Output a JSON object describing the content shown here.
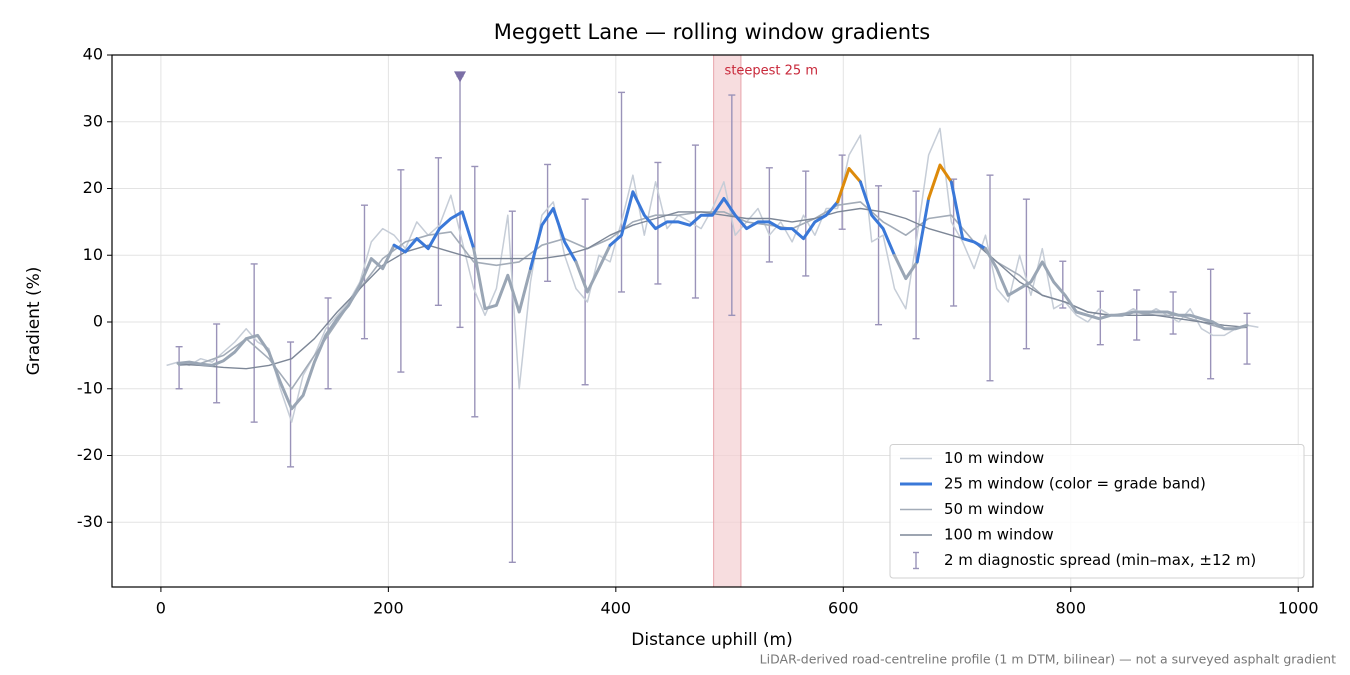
{
  "chart_data": {
    "type": "line",
    "title": "Meggett Lane — rolling window gradients",
    "xlabel": "Distance uphill (m)",
    "ylabel": "Gradient (%)",
    "footnote": "LiDAR-derived road-centreline profile (1 m DTM, bilinear) — not a surveyed asphalt gradient",
    "xlim": [
      -43,
      1013
    ],
    "ylim": [
      -39.7,
      40
    ],
    "xticks": [
      0,
      200,
      400,
      600,
      800,
      1000
    ],
    "yticks": [
      -30,
      -20,
      -10,
      0,
      10,
      20,
      30,
      40
    ],
    "grid": true,
    "legend": "lower right",
    "highlight": {
      "label": "steepest 25 m",
      "x": [
        486,
        510
      ],
      "color": "#f4cfd2",
      "label_color": "#c8283a"
    },
    "series": [
      {
        "name": "10 m window",
        "color": "#c6cdd7",
        "width": 1.5,
        "x": [
          5,
          15,
          25,
          35,
          45,
          55,
          65,
          75,
          85,
          95,
          105,
          115,
          125,
          135,
          145,
          155,
          165,
          175,
          185,
          195,
          205,
          215,
          225,
          235,
          245,
          255,
          265,
          275,
          285,
          295,
          305,
          315,
          325,
          335,
          345,
          355,
          365,
          375,
          385,
          395,
          405,
          415,
          425,
          435,
          445,
          455,
          465,
          475,
          485,
          495,
          505,
          515,
          525,
          535,
          545,
          555,
          565,
          575,
          585,
          595,
          605,
          615,
          625,
          635,
          645,
          655,
          665,
          675,
          685,
          695,
          705,
          715,
          725,
          735,
          745,
          755,
          765,
          775,
          785,
          795,
          805,
          815,
          825,
          835,
          845,
          855,
          865,
          875,
          885,
          895,
          905,
          915,
          925,
          935,
          945,
          955,
          965
        ],
        "values": [
          -6.5,
          -6,
          -6.5,
          -5.5,
          -6,
          -4.5,
          -3,
          -1,
          -3,
          -4,
          -10,
          -15,
          -8,
          -5,
          -1,
          1,
          3,
          6,
          12,
          14,
          13,
          11,
          15,
          13,
          14.5,
          19,
          12,
          5,
          1,
          5,
          16,
          -10,
          6,
          16,
          18,
          10,
          5,
          3,
          10,
          9,
          15,
          22,
          13,
          21,
          14,
          16,
          15,
          14,
          17,
          21,
          13,
          15,
          17,
          13,
          15,
          12,
          16,
          13,
          17,
          17,
          25,
          28,
          12,
          13,
          5,
          2,
          13,
          25,
          29,
          15,
          12,
          8,
          13,
          5,
          3,
          10,
          4,
          11,
          2,
          3,
          1,
          0,
          2,
          1,
          1,
          2,
          1,
          2,
          1,
          0,
          2,
          -1,
          -2,
          -2,
          -1,
          -0.5,
          -0.8
        ]
      },
      {
        "name": "25 m window (color = grade band)",
        "color": "#3a78d8",
        "width": 3,
        "grade_bands": {
          "thresholds": [
            10,
            20
          ],
          "colors": [
            "#9aa6b5",
            "#3a78d8",
            "#dd8a0a"
          ]
        },
        "x": [
          15,
          25,
          35,
          45,
          55,
          65,
          75,
          85,
          95,
          105,
          115,
          125,
          135,
          145,
          155,
          165,
          175,
          185,
          195,
          205,
          215,
          225,
          235,
          245,
          255,
          265,
          275,
          285,
          295,
          305,
          315,
          325,
          335,
          345,
          355,
          365,
          375,
          385,
          395,
          405,
          415,
          425,
          435,
          445,
          455,
          465,
          475,
          485,
          495,
          505,
          515,
          525,
          535,
          545,
          555,
          565,
          575,
          585,
          595,
          605,
          615,
          625,
          635,
          645,
          655,
          665,
          675,
          685,
          695,
          705,
          715,
          725,
          735,
          745,
          755,
          765,
          775,
          785,
          795,
          805,
          815,
          825,
          835,
          845,
          855,
          865,
          875,
          885,
          895,
          905,
          915,
          925,
          935,
          945,
          955
        ],
        "values": [
          -6.2,
          -6,
          -6.3,
          -6.5,
          -5.8,
          -4.5,
          -2.5,
          -2,
          -4.5,
          -9,
          -13,
          -11,
          -6,
          -2,
          0.5,
          2.5,
          5.5,
          9.5,
          8,
          11.5,
          10.5,
          12.5,
          11,
          14,
          15.5,
          16.5,
          11,
          2,
          2.5,
          7,
          1.5,
          8,
          14.5,
          17,
          12,
          9,
          4.5,
          8,
          11.5,
          13,
          19.5,
          16,
          14,
          15,
          15,
          14.5,
          16,
          16,
          18.5,
          16,
          14,
          15,
          15,
          14,
          14,
          12.5,
          15,
          16,
          18,
          23,
          21,
          16,
          14,
          10,
          6.5,
          9,
          18.5,
          23.5,
          21,
          12.5,
          12,
          11,
          8,
          4,
          5,
          6,
          9,
          6,
          4,
          1.5,
          1,
          0.5,
          1,
          1,
          1.5,
          1.5,
          1.5,
          1.5,
          1,
          1,
          0.5,
          0,
          -1,
          -1,
          -0.5
        ]
      },
      {
        "name": "50 m window",
        "color": "#a3acb8",
        "width": 1.6,
        "x": [
          15,
          35,
          55,
          75,
          95,
          115,
          135,
          155,
          175,
          195,
          215,
          235,
          255,
          275,
          295,
          315,
          335,
          355,
          375,
          395,
          415,
          435,
          455,
          475,
          495,
          515,
          535,
          555,
          575,
          595,
          615,
          635,
          655,
          675,
          695,
          715,
          735,
          755,
          775,
          795,
          815,
          835,
          855,
          875,
          895,
          915,
          935,
          955
        ],
        "values": [
          -6.5,
          -6.2,
          -5,
          -2.5,
          -5.5,
          -10,
          -5,
          0,
          5,
          9.5,
          12,
          13,
          13.5,
          9,
          8.5,
          9,
          11.5,
          12.5,
          11,
          12.5,
          15,
          16,
          16,
          16.5,
          16.5,
          15,
          14.5,
          14,
          15.5,
          17.5,
          18,
          15,
          13,
          15.5,
          16,
          12,
          9,
          7,
          4,
          3,
          1.5,
          1,
          1.5,
          1,
          1,
          0,
          -1,
          -0.8
        ]
      },
      {
        "name": "100 m window",
        "color": "#7d8797",
        "width": 1.4,
        "x": [
          15,
          35,
          55,
          75,
          95,
          115,
          135,
          155,
          175,
          195,
          215,
          235,
          255,
          275,
          295,
          315,
          335,
          355,
          375,
          395,
          415,
          435,
          455,
          475,
          495,
          515,
          535,
          555,
          575,
          595,
          615,
          635,
          655,
          675,
          695,
          715,
          735,
          755,
          775,
          795,
          815,
          835,
          855,
          875,
          895,
          915,
          935,
          955
        ],
        "values": [
          -6.3,
          -6.5,
          -6.8,
          -7,
          -6.5,
          -5.5,
          -2.5,
          1.5,
          5,
          8.5,
          10.5,
          11.5,
          10.5,
          9.5,
          9.5,
          9.5,
          9.5,
          10,
          11,
          13,
          14.5,
          15.5,
          16.5,
          16.5,
          16,
          15.5,
          15.5,
          15,
          15.5,
          16.5,
          17,
          16.5,
          15.5,
          14,
          13,
          12,
          9,
          6,
          4,
          3,
          1.5,
          1,
          1,
          1,
          0.5,
          0,
          -0.5,
          -0.8
        ]
      }
    ],
    "error_bars": {
      "name": "2 m diagnostic spread (min–max, ±12 m)",
      "color": "#9a93b9",
      "x": [
        16,
        49,
        82,
        114,
        147,
        179,
        211,
        244,
        263,
        276,
        309,
        340,
        373,
        405,
        437,
        470,
        502,
        535,
        567,
        599,
        631,
        664,
        697,
        729,
        761,
        793,
        826,
        858,
        890,
        923,
        955
      ],
      "max": [
        -3.7,
        -0.3,
        8.7,
        -3,
        3.6,
        17.5,
        22.8,
        24.6,
        36.8,
        23.3,
        16.6,
        23.6,
        18.4,
        34.4,
        23.9,
        26.5,
        34,
        23.1,
        22.6,
        25,
        20.4,
        19.6,
        21.4,
        22,
        18.4,
        9.1,
        4.6,
        4.8,
        4.5,
        7.9,
        1.3
      ],
      "min": [
        -10,
        -12.1,
        -15,
        -21.7,
        -10,
        -2.5,
        -7.5,
        2.5,
        -0.8,
        -14.2,
        -36,
        6.1,
        -9.4,
        4.5,
        5.7,
        3.6,
        1,
        9,
        6.9,
        13.9,
        -0.4,
        -2.5,
        2.4,
        -8.8,
        -4,
        2.1,
        -3.4,
        -2.7,
        -1.8,
        -8.5,
        -6.3
      ]
    },
    "markers": [
      {
        "x": 263,
        "y": 36.8,
        "color": "#7b6fa6"
      }
    ]
  }
}
